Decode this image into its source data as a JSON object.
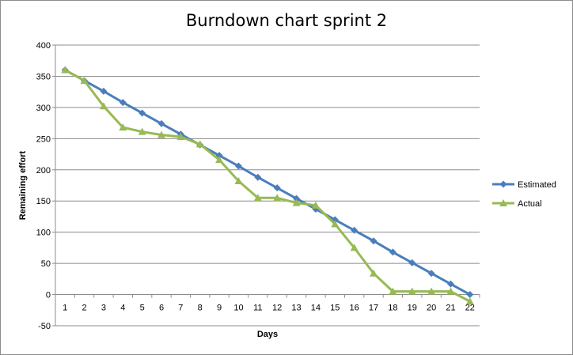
{
  "chart_data": {
    "type": "line",
    "title": "Burndown chart sprint 2",
    "xlabel": "Days",
    "ylabel": "Remaining effort",
    "x": [
      1,
      2,
      3,
      4,
      5,
      6,
      7,
      8,
      9,
      10,
      11,
      12,
      13,
      14,
      15,
      16,
      17,
      18,
      19,
      20,
      21,
      22
    ],
    "ylim": [
      -50,
      400
    ],
    "yticks": [
      -50,
      0,
      50,
      100,
      150,
      200,
      250,
      300,
      350,
      400
    ],
    "grid": "horizontal",
    "legend_position": "right",
    "series": [
      {
        "name": "Estimated",
        "color": "#4a7ebb",
        "marker": "diamond",
        "values": [
          360,
          343,
          326,
          308,
          291,
          274,
          257,
          240,
          223,
          206,
          188,
          171,
          154,
          137,
          120,
          103,
          86,
          68,
          51,
          34,
          17,
          0
        ]
      },
      {
        "name": "Actual",
        "color": "#98b954",
        "marker": "triangle",
        "values": [
          360,
          343,
          302,
          268,
          261,
          256,
          253,
          241,
          216,
          182,
          155,
          155,
          147,
          143,
          113,
          75,
          34,
          5,
          5,
          5,
          5,
          -11
        ]
      }
    ]
  }
}
